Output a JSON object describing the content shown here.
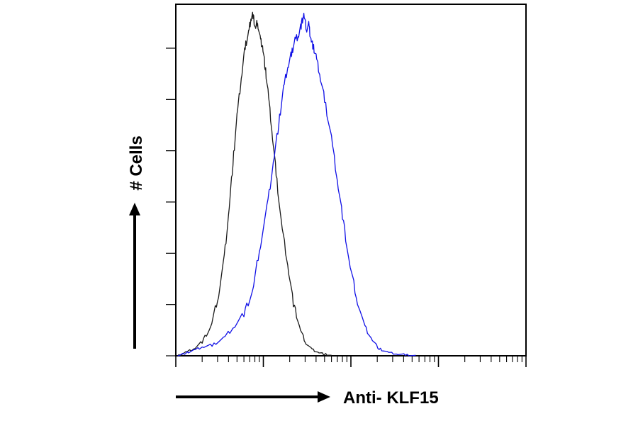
{
  "chart_data": {
    "type": "line",
    "xlabel": "Anti- KLF15",
    "ylabel": "# Cells",
    "x_scale": "log",
    "xlim": [
      1,
      10000
    ],
    "ylim": [
      0,
      100
    ],
    "x_ticks_shown": false,
    "y_ticks_shown": false,
    "grid": false,
    "legend": "none",
    "series": [
      {
        "color": "#1a1a1a",
        "points": [
          [
            1.05,
            0
          ],
          [
            1.3,
            1
          ],
          [
            1.6,
            2
          ],
          [
            2,
            4
          ],
          [
            2.5,
            8
          ],
          [
            3,
            16
          ],
          [
            3.5,
            26
          ],
          [
            4,
            40
          ],
          [
            4.5,
            55
          ],
          [
            5,
            68
          ],
          [
            5.6,
            79
          ],
          [
            6.2,
            88
          ],
          [
            6.8,
            92
          ],
          [
            7.2,
            96
          ],
          [
            7.6,
            97
          ],
          [
            8.1,
            93
          ],
          [
            8.6,
            95
          ],
          [
            9.2,
            90
          ],
          [
            9.8,
            88
          ],
          [
            10.5,
            82
          ],
          [
            11.3,
            75
          ],
          [
            12.5,
            64
          ],
          [
            14,
            52
          ],
          [
            16,
            38
          ],
          [
            19,
            26
          ],
          [
            22,
            15
          ],
          [
            26,
            8
          ],
          [
            30,
            4
          ],
          [
            35,
            2
          ],
          [
            42,
            1
          ],
          [
            50,
            0.5
          ],
          [
            60,
            0
          ]
        ]
      },
      {
        "color": "#1010e6",
        "points": [
          [
            1.05,
            0
          ],
          [
            1.3,
            0.8
          ],
          [
            1.6,
            1.5
          ],
          [
            2,
            2.5
          ],
          [
            2.6,
            3
          ],
          [
            3.5,
            5
          ],
          [
            4.5,
            8
          ],
          [
            6,
            12
          ],
          [
            7.5,
            18
          ],
          [
            9,
            30
          ],
          [
            11,
            42
          ],
          [
            13,
            55
          ],
          [
            15,
            66
          ],
          [
            17,
            76
          ],
          [
            19,
            82
          ],
          [
            21,
            86
          ],
          [
            23,
            90
          ],
          [
            25,
            91
          ],
          [
            27,
            94
          ],
          [
            29,
            97
          ],
          [
            31,
            93
          ],
          [
            33,
            94
          ],
          [
            35,
            90
          ],
          [
            37,
            88
          ],
          [
            40,
            85
          ],
          [
            44,
            80
          ],
          [
            50,
            73
          ],
          [
            60,
            62
          ],
          [
            70,
            50
          ],
          [
            80,
            40
          ],
          [
            95,
            27
          ],
          [
            115,
            17
          ],
          [
            140,
            9
          ],
          [
            170,
            5
          ],
          [
            210,
            2
          ],
          [
            260,
            1
          ],
          [
            330,
            0.5
          ],
          [
            420,
            0.3
          ],
          [
            550,
            0
          ]
        ]
      }
    ]
  }
}
